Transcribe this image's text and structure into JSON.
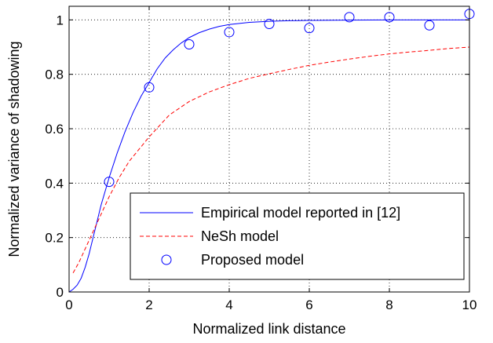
{
  "chart_data": {
    "type": "line",
    "title": "",
    "xlabel": "Normalized link distance",
    "ylabel": "Normalized variance of shadowing",
    "xlim": [
      0,
      10
    ],
    "ylim": [
      0,
      1.05
    ],
    "xticks": [
      0,
      2,
      4,
      6,
      8,
      10
    ],
    "yticks": [
      0,
      0.2,
      0.4,
      0.6,
      0.8,
      1
    ],
    "xtick_labels": [
      "0",
      "2",
      "4",
      "6",
      "8",
      "10"
    ],
    "ytick_labels": [
      "0",
      "0.2",
      "0.4",
      "0.6",
      "0.8",
      "1"
    ],
    "grid": true,
    "legend_position": "bottom-right",
    "series": [
      {
        "name": "Empirical model reported in [12]",
        "style": "solid-line",
        "color": "#0000ff",
        "x": [
          0,
          0.1,
          0.2,
          0.3,
          0.4,
          0.5,
          0.6,
          0.7,
          0.8,
          0.9,
          1.0,
          1.2,
          1.4,
          1.6,
          1.8,
          2.0,
          2.2,
          2.4,
          2.6,
          2.8,
          3.0,
          3.25,
          3.5,
          3.75,
          4.0,
          4.5,
          5.0,
          5.5,
          6.0,
          7.0,
          8.0,
          9.0,
          10.0
        ],
        "y": [
          0,
          0.01,
          0.025,
          0.05,
          0.09,
          0.14,
          0.2,
          0.26,
          0.32,
          0.37,
          0.42,
          0.51,
          0.59,
          0.66,
          0.72,
          0.77,
          0.82,
          0.86,
          0.89,
          0.915,
          0.935,
          0.953,
          0.966,
          0.976,
          0.983,
          0.991,
          0.995,
          0.997,
          0.998,
          0.999,
          1.0,
          1.0,
          1.0
        ]
      },
      {
        "name": "NeSh model",
        "style": "dashed-line",
        "color": "#ff0000",
        "x": [
          0.1,
          0.25,
          0.5,
          0.75,
          1.0,
          1.25,
          1.5,
          2.0,
          2.5,
          3.0,
          3.5,
          4.0,
          4.5,
          5.0,
          5.5,
          6.0,
          6.5,
          7.0,
          7.5,
          8.0,
          8.5,
          9.0,
          9.5,
          10.0
        ],
        "y": [
          0.07,
          0.11,
          0.19,
          0.27,
          0.35,
          0.42,
          0.48,
          0.57,
          0.65,
          0.7,
          0.735,
          0.762,
          0.785,
          0.802,
          0.818,
          0.833,
          0.845,
          0.856,
          0.866,
          0.875,
          0.882,
          0.888,
          0.895,
          0.9
        ]
      },
      {
        "name": "Proposed model",
        "style": "circle-markers",
        "color": "#0000ff",
        "x": [
          1,
          2,
          3,
          4,
          5,
          6,
          7,
          8,
          9,
          10
        ],
        "y": [
          0.405,
          0.752,
          0.91,
          0.955,
          0.985,
          0.97,
          1.01,
          1.01,
          0.98,
          1.022
        ]
      }
    ]
  }
}
